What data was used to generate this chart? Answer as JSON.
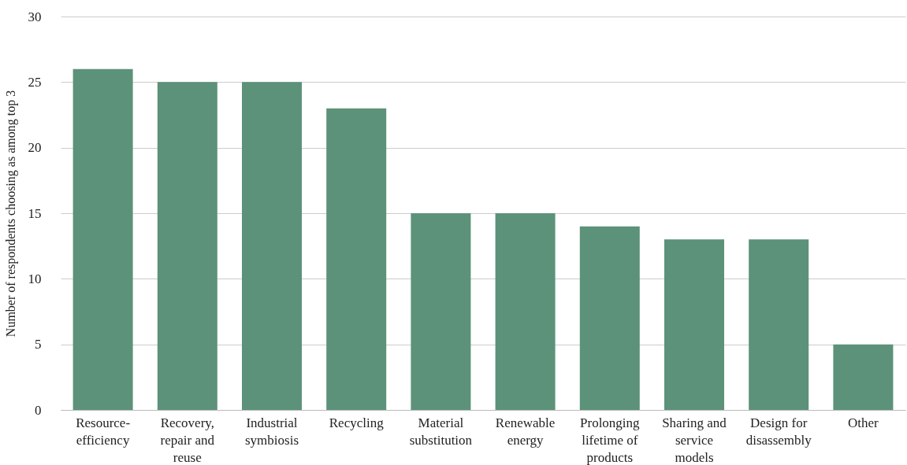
{
  "chart_data": {
    "type": "bar",
    "categories": [
      "Resource-efficiency",
      "Recovery, repair and reuse",
      "Industrial symbiosis",
      "Recycling",
      "Material substitution",
      "Renewable energy",
      "Prolonging lifetime of products",
      "Sharing and service models",
      "Design for disassembly",
      "Other"
    ],
    "values": [
      26,
      25,
      25,
      23,
      15,
      15,
      14,
      13,
      13,
      5
    ],
    "color": "#5c9279",
    "ylabel": "Number of respondents choosing as among top 3",
    "ylim": [
      0,
      30
    ],
    "yticks": [
      0,
      5,
      10,
      15,
      20,
      25,
      30
    ],
    "grid": "y"
  }
}
